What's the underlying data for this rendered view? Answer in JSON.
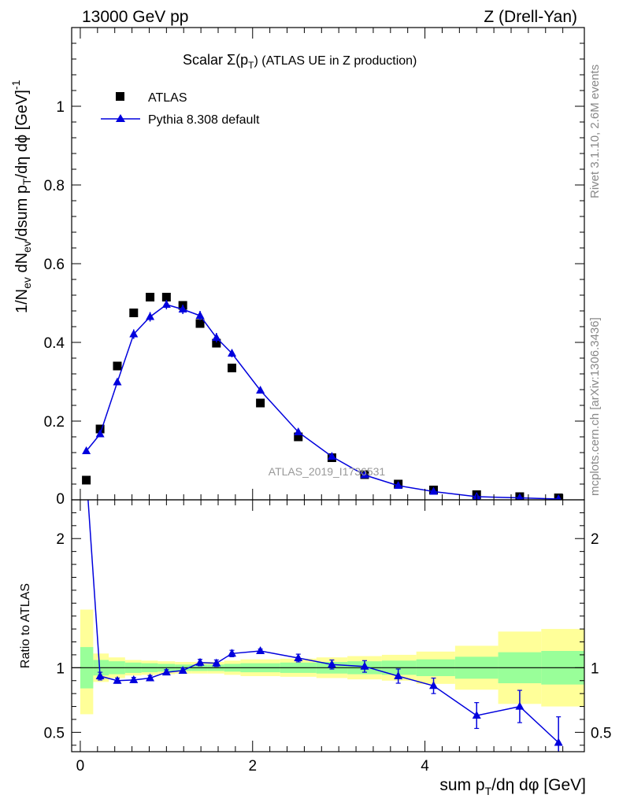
{
  "header": {
    "left": "13000 GeV pp",
    "right": "Z (Drell-Yan)"
  },
  "side_labels": {
    "rivet": "Rivet 3.1.10,  2.6M events",
    "mcplots": "mcplots.cern.ch [arXiv:1306.3436]"
  },
  "chart_data": [
    {
      "type": "scatter",
      "title": "Scalar Σ(pT) (ATLAS UE in Z production)",
      "title_parts": {
        "prefix": "Scalar Σ(p",
        "sub": "T",
        "suffix": ") (ATLAS UE in Z production)"
      },
      "analysis_label": "ATLAS_2019_I1736531",
      "ylabel": "1/Nev dNev/dsum pT/dη dφ [GeV]-1",
      "ylim": [
        0,
        1.2
      ],
      "xlim": [
        -0.1,
        5.85
      ],
      "yticks": [
        {
          "value": 0.2,
          "label": "0.2"
        },
        {
          "value": 0.4,
          "label": "0.4"
        },
        {
          "value": 0.6,
          "label": "0.6"
        },
        {
          "value": 0.8,
          "label": "0.8"
        },
        {
          "value": 1.0,
          "label": "1"
        }
      ],
      "ytick_zero_label": "0",
      "legend": {
        "placement": "top-left",
        "entries": [
          "ATLAS",
          "Pythia 8.308 default"
        ]
      },
      "series": [
        {
          "name": "ATLAS",
          "marker": "square",
          "color": "#000000",
          "x": [
            0.07,
            0.23,
            0.43,
            0.62,
            0.81,
            1.0,
            1.19,
            1.39,
            1.58,
            1.76,
            2.09,
            2.53,
            2.92,
            3.3,
            3.69,
            4.1,
            4.6,
            5.1,
            5.55
          ],
          "y": [
            0.05,
            0.18,
            0.34,
            0.475,
            0.515,
            0.515,
            0.494,
            0.448,
            0.398,
            0.335,
            0.246,
            0.16,
            0.107,
            0.064,
            0.04,
            0.025,
            0.013,
            0.008,
            0.005
          ]
        },
        {
          "name": "Pythia 8.308 default",
          "marker": "triangle",
          "color": "#0000dd",
          "x": [
            0.07,
            0.23,
            0.43,
            0.62,
            0.81,
            1.0,
            1.19,
            1.39,
            1.58,
            1.76,
            2.09,
            2.53,
            2.92,
            3.3,
            3.69,
            4.1,
            4.6,
            5.1,
            5.55
          ],
          "y": [
            0.124,
            0.167,
            0.299,
            0.421,
            0.465,
            0.496,
            0.484,
            0.468,
            0.412,
            0.372,
            0.278,
            0.172,
            0.11,
            0.063,
            0.036,
            0.021,
            0.008,
            0.005,
            0.002
          ],
          "yerr": [
            0.004,
            0.006,
            0.008,
            0.012,
            0.012,
            0.012,
            0.012,
            0.012,
            0.012,
            0.01,
            0.006,
            0.005,
            0.004,
            0.003,
            0.002,
            0.002,
            0.001,
            0.001,
            0.001
          ]
        }
      ]
    },
    {
      "type": "line",
      "ylabel": "Ratio to ATLAS",
      "xlabel": "sum pT/dη dφ [GeV]",
      "xlabel_parts": {
        "prefix": "sum p",
        "sub": "T",
        "suffix": "/dη dφ [GeV]"
      },
      "ylim": [
        0.35,
        2.3
      ],
      "xlim": [
        -0.1,
        5.85
      ],
      "yticks": [
        {
          "value": 0.5,
          "label": "0.5"
        },
        {
          "value": 1.0,
          "label": "1"
        },
        {
          "value": 2.0,
          "label": "2"
        }
      ],
      "xticks": [
        {
          "value": 0,
          "label": "0"
        },
        {
          "value": 2,
          "label": "2"
        },
        {
          "value": 4,
          "label": "4"
        }
      ],
      "reference_line": 1.0,
      "bands": {
        "bins": [
          {
            "x0": 0.0,
            "x1": 0.15,
            "inner": [
              0.84,
              1.16
            ],
            "outer": [
              0.64,
              1.45
            ]
          },
          {
            "x0": 0.15,
            "x1": 0.33,
            "inner": [
              0.94,
              1.06
            ],
            "outer": [
              0.89,
              1.11
            ]
          },
          {
            "x0": 0.33,
            "x1": 0.52,
            "inner": [
              0.95,
              1.05
            ],
            "outer": [
              0.92,
              1.08
            ]
          },
          {
            "x0": 0.52,
            "x1": 0.71,
            "inner": [
              0.96,
              1.04
            ],
            "outer": [
              0.94,
              1.06
            ]
          },
          {
            "x0": 0.71,
            "x1": 0.9,
            "inner": [
              0.965,
              1.035
            ],
            "outer": [
              0.945,
              1.055
            ]
          },
          {
            "x0": 0.9,
            "x1": 1.1,
            "inner": [
              0.97,
              1.03
            ],
            "outer": [
              0.95,
              1.05
            ]
          },
          {
            "x0": 1.1,
            "x1": 1.29,
            "inner": [
              0.975,
              1.025
            ],
            "outer": [
              0.955,
              1.045
            ]
          },
          {
            "x0": 1.29,
            "x1": 1.48,
            "inner": [
              0.975,
              1.025
            ],
            "outer": [
              0.955,
              1.045
            ]
          },
          {
            "x0": 1.48,
            "x1": 1.67,
            "inner": [
              0.975,
              1.025
            ],
            "outer": [
              0.955,
              1.045
            ]
          },
          {
            "x0": 1.67,
            "x1": 1.86,
            "inner": [
              0.97,
              1.03
            ],
            "outer": [
              0.945,
              1.055
            ]
          },
          {
            "x0": 1.86,
            "x1": 2.32,
            "inner": [
              0.965,
              1.035
            ],
            "outer": [
              0.935,
              1.065
            ]
          },
          {
            "x0": 2.32,
            "x1": 2.74,
            "inner": [
              0.96,
              1.04
            ],
            "outer": [
              0.93,
              1.07
            ]
          },
          {
            "x0": 2.74,
            "x1": 3.1,
            "inner": [
              0.955,
              1.045
            ],
            "outer": [
              0.92,
              1.08
            ]
          },
          {
            "x0": 3.1,
            "x1": 3.5,
            "inner": [
              0.95,
              1.05
            ],
            "outer": [
              0.91,
              1.09
            ]
          },
          {
            "x0": 3.5,
            "x1": 3.9,
            "inner": [
              0.945,
              1.055
            ],
            "outer": [
              0.9,
              1.1
            ]
          },
          {
            "x0": 3.9,
            "x1": 4.35,
            "inner": [
              0.935,
              1.065
            ],
            "outer": [
              0.875,
              1.125
            ]
          },
          {
            "x0": 4.35,
            "x1": 4.85,
            "inner": [
              0.915,
              1.085
            ],
            "outer": [
              0.83,
              1.17
            ]
          },
          {
            "x0": 4.85,
            "x1": 5.35,
            "inner": [
              0.88,
              1.12
            ],
            "outer": [
              0.72,
              1.28
            ]
          },
          {
            "x0": 5.35,
            "x1": 5.85,
            "inner": [
              0.87,
              1.13
            ],
            "outer": [
              0.7,
              1.3
            ]
          }
        ],
        "inner_color": "#99ff99",
        "outer_color": "#ffff99"
      },
      "series": [
        {
          "name": "Pythia 8.308 default",
          "color": "#0000dd",
          "x": [
            0.07,
            0.23,
            0.43,
            0.62,
            0.81,
            1.0,
            1.19,
            1.39,
            1.58,
            1.76,
            2.09,
            2.53,
            2.92,
            3.3,
            3.69,
            4.1,
            4.6,
            5.1,
            5.55
          ],
          "y": [
            2.5,
            0.935,
            0.9,
            0.905,
            0.92,
            0.965,
            0.978,
            1.04,
            1.035,
            1.11,
            1.13,
            1.075,
            1.025,
            1.01,
            0.935,
            0.86,
            0.63,
            0.7,
            0.42
          ],
          "yerr": [
            0.01,
            0.03,
            0.02,
            0.02,
            0.02,
            0.02,
            0.02,
            0.025,
            0.025,
            0.025,
            0.015,
            0.03,
            0.035,
            0.045,
            0.055,
            0.06,
            0.1,
            0.125,
            0.2
          ]
        }
      ]
    }
  ]
}
